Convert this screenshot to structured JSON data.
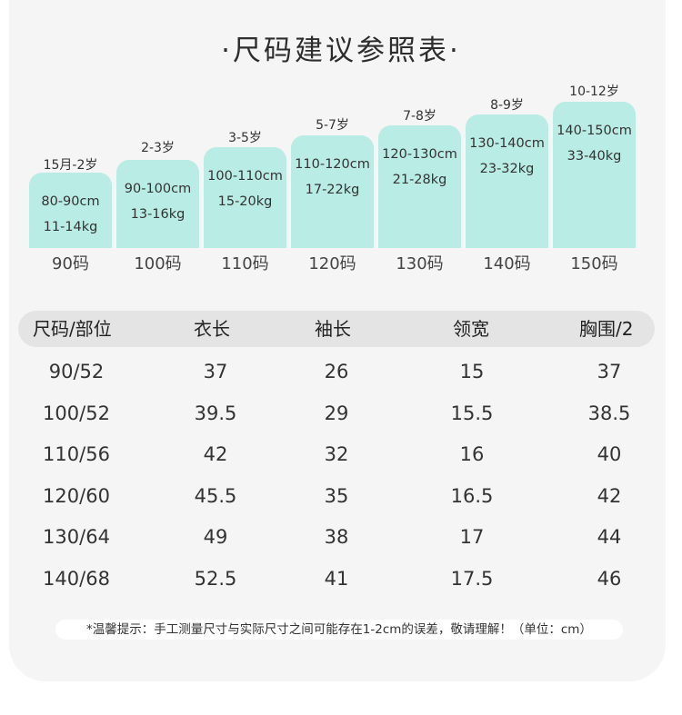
{
  "title": "·尺码建议参照表·",
  "sizes": [
    {
      "age": "15月-2岁",
      "height": "80-90cm",
      "weight": "11-14kg",
      "size": "90码"
    },
    {
      "age": "2-3岁",
      "height": "90-100cm",
      "weight": "13-16kg",
      "size": "100码"
    },
    {
      "age": "3-5岁",
      "height": "100-110cm",
      "weight": "15-20kg",
      "size": "110码"
    },
    {
      "age": "5-7岁",
      "height": "110-120cm",
      "weight": "17-22kg",
      "size": "120码"
    },
    {
      "age": "7-8岁",
      "height": "120-130cm",
      "weight": "21-28kg",
      "size": "130码"
    },
    {
      "age": "8-9岁",
      "height": "130-140cm",
      "weight": "23-32kg",
      "size": "140码"
    },
    {
      "age": "10-12岁",
      "height": "140-150cm",
      "weight": "33-40kg",
      "size": "150码"
    }
  ],
  "table": {
    "headers": [
      "尺码/部位",
      "衣长",
      "袖长",
      "领宽",
      "胸围/2"
    ],
    "rows": [
      [
        "90/52",
        "37",
        "26",
        "15",
        "37"
      ],
      [
        "100/52",
        "39.5",
        "29",
        "15.5",
        "38.5"
      ],
      [
        "110/56",
        "42",
        "32",
        "16",
        "40"
      ],
      [
        "120/60",
        "45.5",
        "35",
        "16.5",
        "42"
      ],
      [
        "130/64",
        "49",
        "38",
        "17",
        "44"
      ],
      [
        "140/68",
        "52.5",
        "41",
        "17.5",
        "46"
      ]
    ]
  },
  "note": "*温馨提示：手工测量尺寸与实际尺寸之间可能存在1-2cm的误差，敬请理解！（单位：cm）",
  "colors": {
    "card": "#b8ece4",
    "panel": "#f5f5f5",
    "header": "#e4e4e4"
  }
}
